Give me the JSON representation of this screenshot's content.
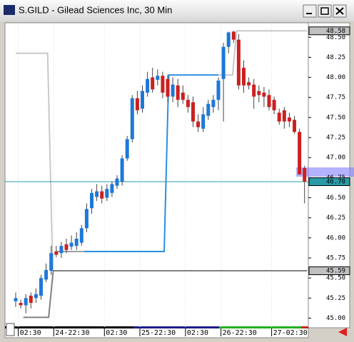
{
  "window": {
    "title": "S.GILD - Gilead Sciences Inc, 30 Min"
  },
  "chart_data": {
    "type": "candlestick",
    "categories": [
      null,
      "02:30",
      null,
      null,
      null,
      null,
      null,
      null,
      "24-22:30",
      null,
      null,
      null,
      null,
      null,
      null,
      null,
      null,
      null,
      "02:30",
      null,
      null,
      null,
      null,
      null,
      null,
      "25-22:30",
      null,
      null,
      null,
      null,
      null,
      null,
      null,
      null,
      "02:30",
      null,
      null,
      null,
      null,
      null,
      null,
      "26-22:30",
      null,
      null,
      null,
      null,
      null,
      null,
      null,
      null,
      null,
      "27-02:30",
      null,
      null,
      null,
      null,
      null,
      null
    ],
    "candles": [
      [
        45.21,
        45.32,
        45.14,
        45.25
      ],
      [
        45.19,
        45.23,
        45.12,
        45.16
      ],
      [
        45.16,
        45.3,
        45.06,
        45.25
      ],
      [
        45.28,
        45.32,
        45.12,
        45.19
      ],
      [
        45.25,
        45.37,
        45.19,
        45.3
      ],
      [
        45.28,
        45.54,
        45.23,
        45.5
      ],
      [
        45.48,
        45.68,
        45.45,
        45.6
      ],
      [
        45.59,
        45.9,
        45.54,
        45.81
      ],
      [
        45.83,
        45.9,
        45.76,
        45.79
      ],
      [
        45.81,
        45.95,
        45.75,
        45.9
      ],
      [
        45.92,
        45.99,
        45.81,
        45.85
      ],
      [
        45.89,
        46.03,
        45.85,
        45.94
      ],
      [
        45.9,
        46.07,
        45.85,
        45.99
      ],
      [
        45.94,
        46.16,
        45.9,
        46.12
      ],
      [
        46.12,
        46.43,
        46.07,
        46.36
      ],
      [
        46.37,
        46.61,
        46.3,
        46.56
      ],
      [
        46.51,
        46.67,
        46.46,
        46.58
      ],
      [
        46.58,
        46.65,
        46.43,
        46.49
      ],
      [
        46.5,
        46.67,
        46.46,
        46.61
      ],
      [
        46.56,
        46.7,
        46.51,
        46.67
      ],
      [
        46.65,
        46.78,
        46.61,
        46.74
      ],
      [
        46.7,
        47.03,
        46.65,
        46.99
      ],
      [
        46.99,
        47.27,
        46.96,
        47.23
      ],
      [
        47.23,
        47.78,
        47.19,
        47.74
      ],
      [
        47.74,
        47.83,
        47.54,
        47.59
      ],
      [
        47.61,
        47.9,
        47.56,
        47.83
      ],
      [
        47.81,
        48.07,
        47.76,
        47.98
      ],
      [
        48.0,
        48.12,
        47.81,
        47.85
      ],
      [
        47.97,
        48.1,
        47.9,
        48.02
      ],
      [
        48.02,
        48.07,
        47.74,
        47.81
      ],
      [
        47.98,
        48.03,
        47.69,
        47.76
      ],
      [
        47.76,
        48.0,
        47.69,
        47.91
      ],
      [
        47.9,
        47.98,
        47.63,
        47.72
      ],
      [
        47.81,
        47.9,
        47.67,
        47.72
      ],
      [
        47.72,
        47.78,
        47.56,
        47.63
      ],
      [
        47.69,
        47.76,
        47.38,
        47.45
      ],
      [
        47.45,
        47.54,
        47.32,
        47.38
      ],
      [
        47.36,
        47.63,
        47.32,
        47.54
      ],
      [
        47.52,
        47.72,
        47.47,
        47.67
      ],
      [
        47.63,
        47.78,
        47.56,
        47.72
      ],
      [
        47.72,
        48.0,
        47.59,
        47.96
      ],
      [
        47.98,
        48.43,
        47.45,
        48.38
      ],
      [
        48.38,
        48.57,
        48.3,
        48.56
      ],
      [
        48.57,
        48.58,
        48.43,
        48.47
      ],
      [
        48.47,
        48.54,
        47.85,
        47.9
      ],
      [
        48.12,
        48.21,
        47.81,
        47.9
      ],
      [
        47.94,
        48.0,
        47.85,
        47.9
      ],
      [
        47.91,
        47.98,
        47.61,
        47.76
      ],
      [
        47.83,
        47.9,
        47.69,
        47.78
      ],
      [
        47.81,
        47.88,
        47.63,
        47.76
      ],
      [
        47.78,
        47.85,
        47.59,
        47.63
      ],
      [
        47.72,
        47.76,
        47.54,
        47.59
      ],
      [
        47.56,
        47.61,
        47.41,
        47.45
      ],
      [
        47.59,
        47.63,
        47.36,
        47.45
      ],
      [
        47.5,
        47.56,
        47.38,
        47.45
      ],
      [
        47.47,
        47.52,
        47.3,
        47.32
      ],
      [
        47.32,
        47.36,
        46.79,
        46.79
      ],
      [
        46.87,
        46.9,
        46.43,
        46.7
      ]
    ],
    "up_color": "#1e78d8",
    "down_color": "#cc2020",
    "lines": [
      {
        "color": "#c8c8c8",
        "x": [
          0,
          6.3,
          7.3
        ],
        "values": [
          48.3,
          48.3,
          45.59
        ]
      },
      {
        "color": "#808080",
        "x": [
          1.5,
          6.5,
          7.4,
          57.5
        ],
        "values": [
          45.01,
          45.01,
          45.59,
          45.59
        ]
      },
      {
        "color": "#a0a0a0",
        "x": [
          8,
          13.5
        ],
        "values": [
          45.83,
          45.83
        ]
      },
      {
        "color": "#2a8ee0",
        "x": [
          13.5,
          29.3,
          30.2,
          40
        ],
        "values": [
          45.83,
          45.83,
          48.03,
          48.03
        ]
      },
      {
        "color": "#c8c8c8",
        "x": [
          40,
          42.8,
          43.6,
          57.5
        ],
        "values": [
          48.03,
          48.03,
          48.58,
          48.58
        ]
      }
    ],
    "ylim": [
      44.88,
      48.68
    ],
    "yticks": [
      {
        "value": 45,
        "label": "45.00"
      },
      {
        "value": 45.25,
        "label": "45.25"
      },
      {
        "value": 45.5,
        "label": "45.50"
      },
      {
        "value": 45.75,
        "label": "45.75"
      },
      {
        "value": 46,
        "label": "46.00"
      },
      {
        "value": 46.25,
        "label": "46.25"
      },
      {
        "value": 46.5,
        "label": "46.50"
      },
      {
        "value": 46.75,
        "label": "46.75"
      },
      {
        "value": 47,
        "label": "47.00"
      },
      {
        "value": 47.25,
        "label": "47.25"
      },
      {
        "value": 47.5,
        "label": "47.50"
      },
      {
        "value": 47.75,
        "label": "47.75"
      },
      {
        "value": 48,
        "label": "48.00"
      },
      {
        "value": 48.25,
        "label": "48.25"
      },
      {
        "value": 48.5,
        "label": "48.50"
      }
    ],
    "price_markers": [
      {
        "value": 48.58,
        "label": "48.58",
        "color": "#c0c0c0"
      },
      {
        "value": 46.7,
        "label": "46.70",
        "color": "#2a9aa8"
      },
      {
        "value": 45.59,
        "label": "45.59",
        "color": "#c0c0c0"
      }
    ],
    "current_price_color": "#2a9aa8"
  }
}
